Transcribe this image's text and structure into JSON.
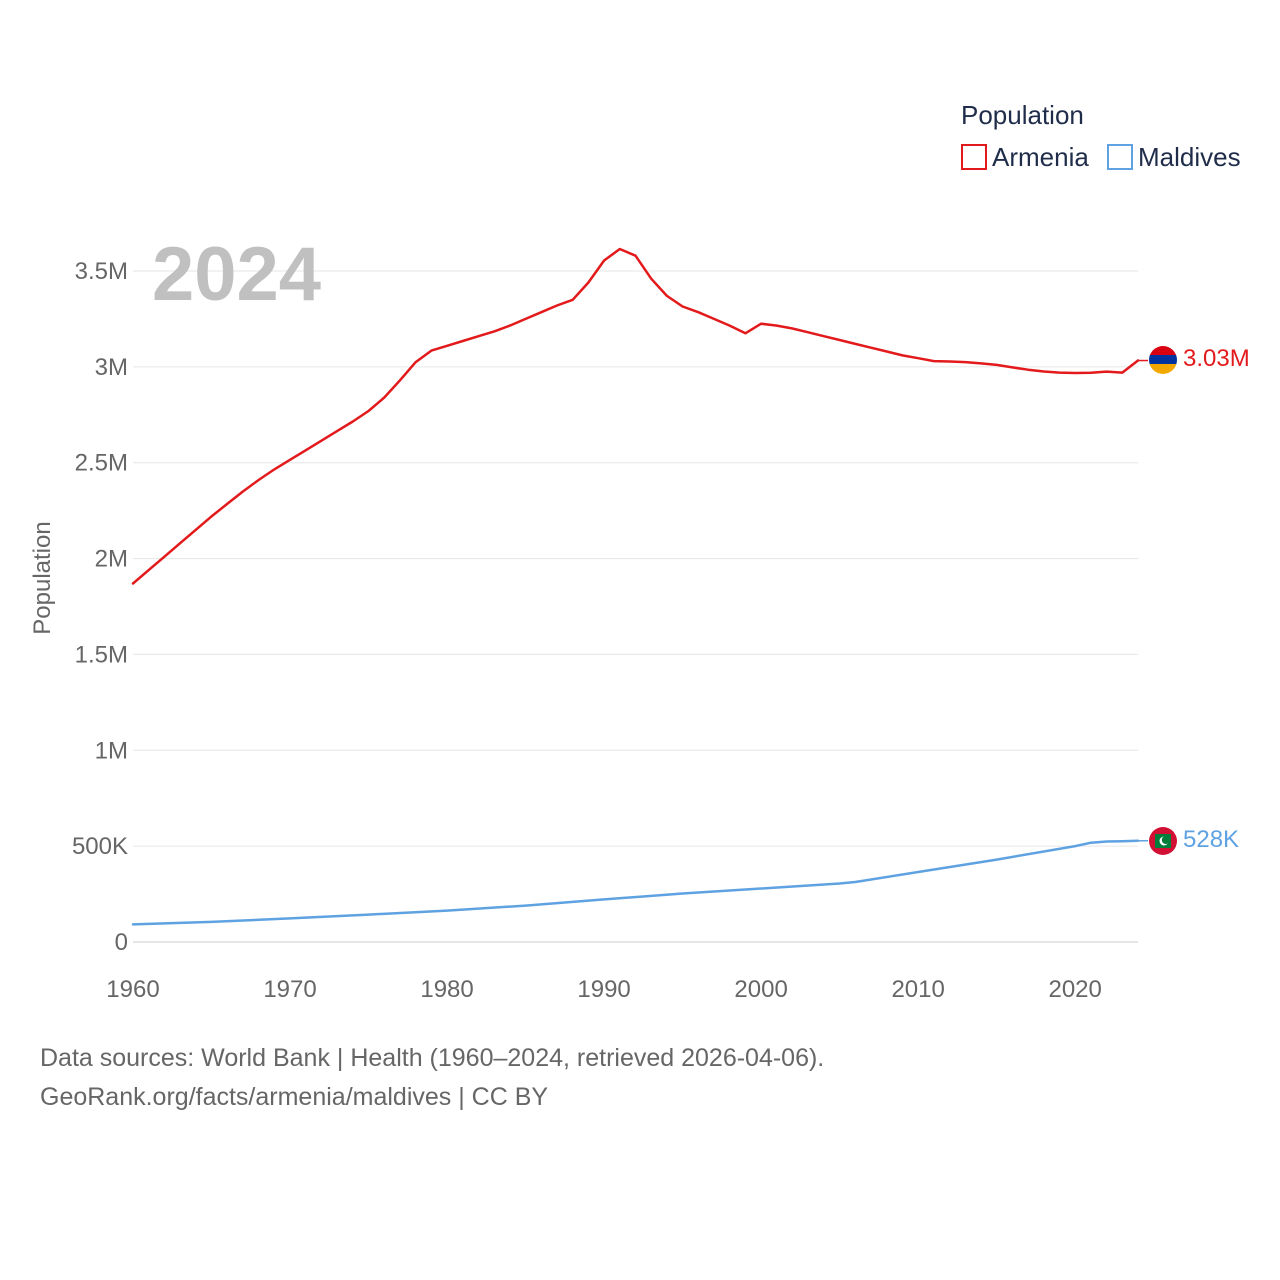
{
  "chart_data": {
    "type": "line",
    "year_label": "2024",
    "ylabel": "Population",
    "legend_title": "Population",
    "legend_position": "top-right",
    "ylim": [
      0,
      3750000
    ],
    "xlim": [
      1960,
      2024
    ],
    "y_ticks": [
      {
        "value": 0,
        "label": "0"
      },
      {
        "value": 500000,
        "label": "500K"
      },
      {
        "value": 1000000,
        "label": "1M"
      },
      {
        "value": 1500000,
        "label": "1.5M"
      },
      {
        "value": 2000000,
        "label": "2M"
      },
      {
        "value": 2500000,
        "label": "2.5M"
      },
      {
        "value": 3000000,
        "label": "3M"
      },
      {
        "value": 3500000,
        "label": "3.5M"
      }
    ],
    "x_ticks": [
      {
        "value": 1960,
        "label": "1960"
      },
      {
        "value": 1970,
        "label": "1970"
      },
      {
        "value": 1980,
        "label": "1980"
      },
      {
        "value": 1990,
        "label": "1990"
      },
      {
        "value": 2000,
        "label": "2000"
      },
      {
        "value": 2010,
        "label": "2010"
      },
      {
        "value": 2020,
        "label": "2020"
      }
    ],
    "series": [
      {
        "name": "Armenia",
        "color": "#e31a1c",
        "end_label": "3.03M",
        "x": [
          1960,
          1961,
          1962,
          1963,
          1964,
          1965,
          1966,
          1967,
          1968,
          1969,
          1970,
          1971,
          1972,
          1973,
          1974,
          1975,
          1976,
          1977,
          1978,
          1979,
          1980,
          1981,
          1982,
          1983,
          1984,
          1985,
          1986,
          1987,
          1988,
          1989,
          1990,
          1991,
          1992,
          1993,
          1994,
          1995,
          1996,
          1997,
          1998,
          1999,
          2000,
          2001,
          2002,
          2003,
          2004,
          2005,
          2006,
          2007,
          2008,
          2009,
          2010,
          2011,
          2012,
          2013,
          2014,
          2015,
          2016,
          2017,
          2018,
          2019,
          2020,
          2021,
          2022,
          2023,
          2024
        ],
        "values": [
          1870000,
          1940000,
          2010000,
          2080000,
          2150000,
          2220000,
          2285000,
          2350000,
          2410000,
          2465000,
          2515000,
          2565000,
          2615000,
          2665000,
          2715000,
          2770000,
          2840000,
          2930000,
          3025000,
          3085000,
          3110000,
          3135000,
          3160000,
          3185000,
          3215000,
          3250000,
          3285000,
          3320000,
          3350000,
          3440000,
          3555000,
          3615000,
          3580000,
          3460000,
          3370000,
          3315000,
          3285000,
          3250000,
          3215000,
          3175000,
          3225000,
          3215000,
          3200000,
          3180000,
          3160000,
          3140000,
          3120000,
          3100000,
          3080000,
          3060000,
          3045000,
          3030000,
          3028000,
          3025000,
          3018000,
          3010000,
          2997000,
          2985000,
          2976000,
          2970000,
          2968000,
          2969000,
          2975000,
          2970000,
          3033000
        ]
      },
      {
        "name": "Maldives",
        "color": "#5ea2e2",
        "end_label": "528K",
        "x": [
          1960,
          1965,
          1970,
          1975,
          1980,
          1985,
          1990,
          1995,
          2000,
          2005,
          2006,
          2010,
          2015,
          2020,
          2021,
          2022,
          2023,
          2024
        ],
        "values": [
          92000,
          105000,
          123000,
          143000,
          164000,
          190000,
          222000,
          253000,
          279000,
          305000,
          313000,
          365000,
          430000,
          500000,
          518000,
          524000,
          526000,
          528000
        ]
      }
    ]
  },
  "source": {
    "line1": "Data sources: World Bank | Health (1960–2024, retrieved 2026-04-06).",
    "line2": "GeoRank.org/facts/armenia/maldives | CC BY"
  }
}
